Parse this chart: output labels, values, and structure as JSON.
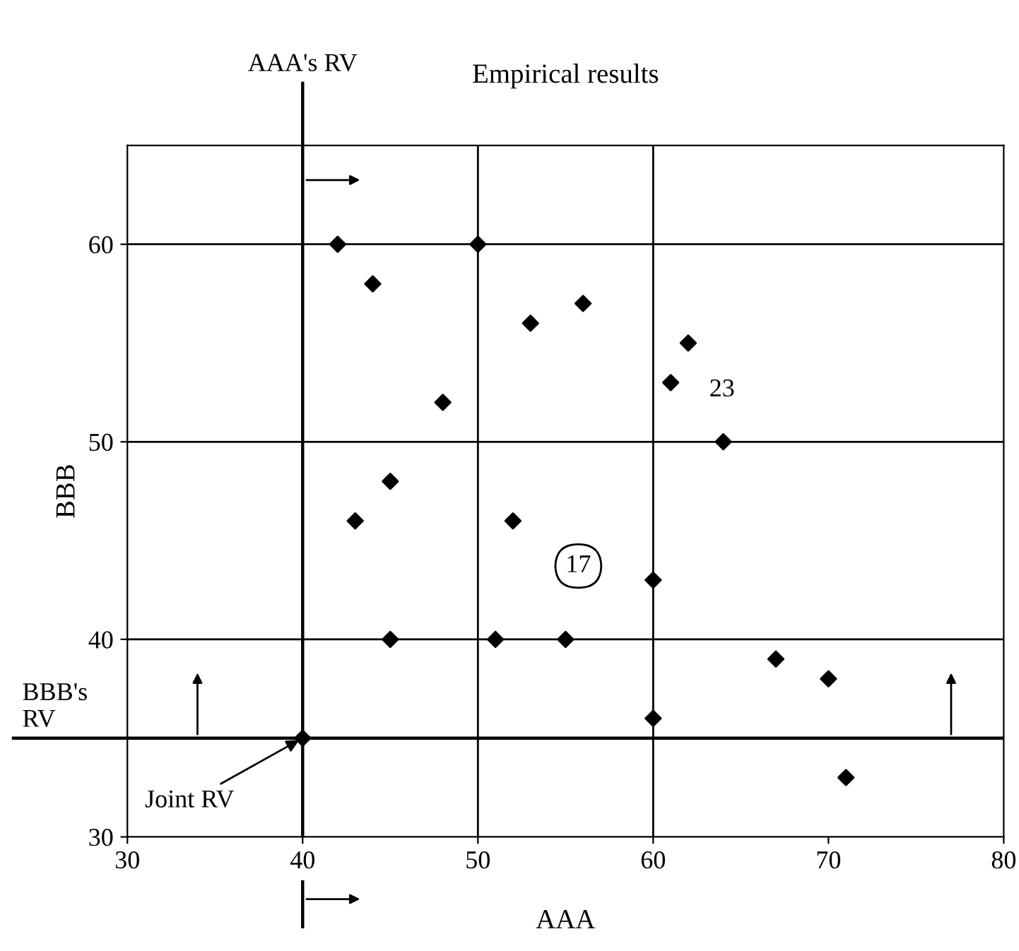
{
  "chart_data": {
    "type": "scatter",
    "title": "Empirical results",
    "xlabel": "AAA",
    "ylabel": "BBB",
    "x": [
      42,
      44,
      50,
      53,
      56,
      62,
      61,
      48,
      64,
      45,
      43,
      52,
      60,
      45,
      51,
      55,
      67,
      70,
      60,
      40,
      71
    ],
    "series": [
      {
        "color": "#000000",
        "values": [
          60,
          58,
          60,
          56,
          57,
          55,
          53,
          52,
          50,
          48,
          46,
          46,
          43,
          40,
          40,
          40,
          39,
          38,
          36,
          35,
          33
        ]
      }
    ],
    "xlim": [
      30,
      80
    ],
    "ylim": [
      30,
      65
    ],
    "xticks": [
      30,
      40,
      50,
      60,
      70,
      80
    ],
    "yticks": [
      30,
      40,
      50,
      60
    ],
    "marker": "diamond",
    "grid": false,
    "ref_lines": [
      {
        "axis": "x",
        "value": 40,
        "label": "AAA's RV"
      },
      {
        "axis": "y",
        "value": 35,
        "label": "BBB's\nRV"
      },
      {
        "axis": "x",
        "value": 50
      },
      {
        "axis": "x",
        "value": 60
      },
      {
        "axis": "y",
        "value": 40
      },
      {
        "axis": "y",
        "value": 50
      },
      {
        "axis": "y",
        "value": 60
      }
    ],
    "annotations": [
      {
        "text": "Joint RV",
        "x": 40,
        "y": 35
      },
      {
        "text": "23",
        "x": 61,
        "y": 53
      },
      {
        "text": "17",
        "x": 52,
        "y": 46
      }
    ]
  }
}
